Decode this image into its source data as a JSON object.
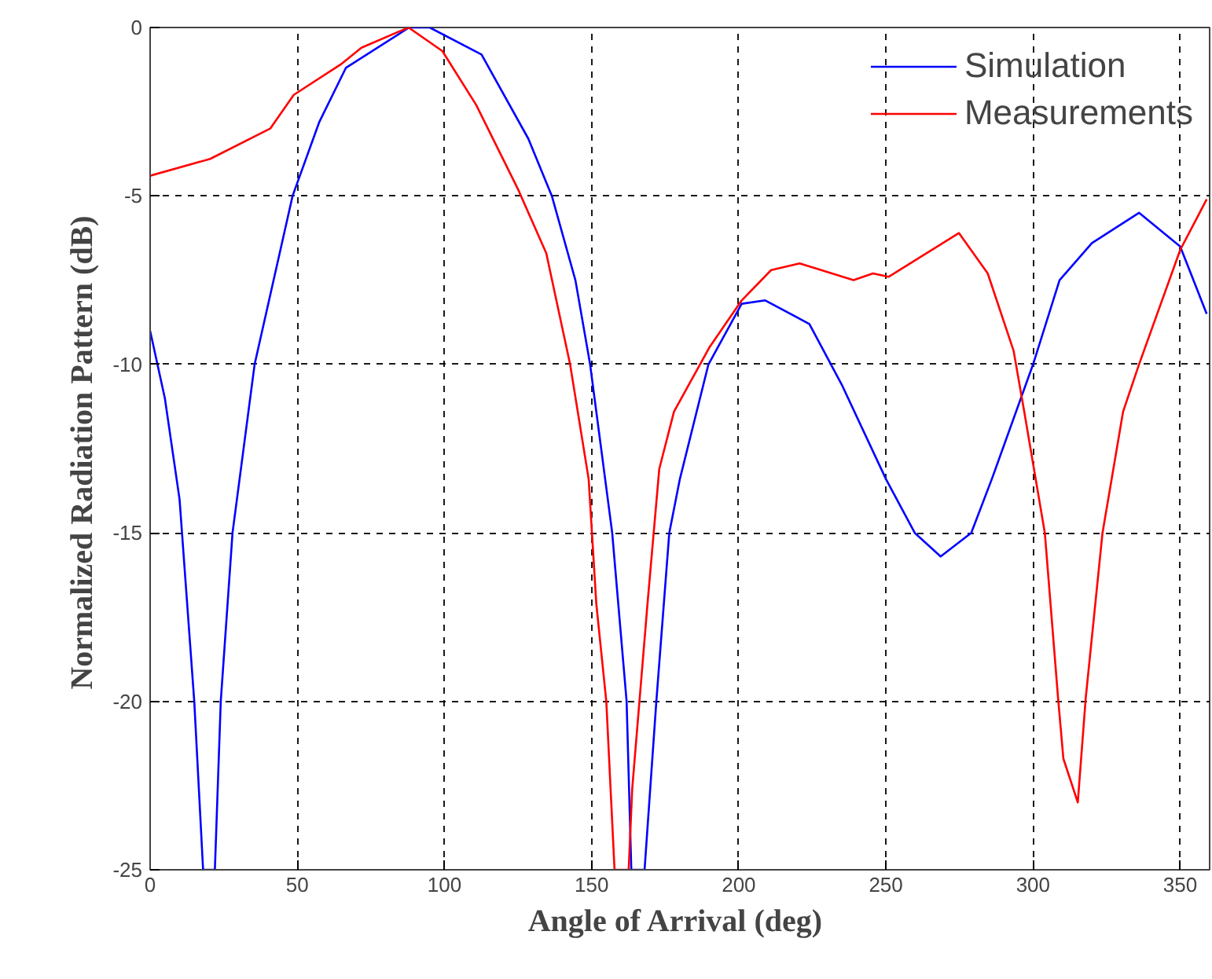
{
  "chart_data": {
    "type": "line",
    "xlabel": "Angle of Arrival  (deg)",
    "ylabel": "Normalized Radiation Pattern  (dB)",
    "xlim": [
      0,
      360
    ],
    "ylim": [
      -25,
      0
    ],
    "xticks": [
      0,
      50,
      100,
      150,
      200,
      250,
      300,
      350
    ],
    "yticks": [
      -25,
      -20,
      -15,
      -10,
      -5,
      0
    ],
    "grid": true,
    "legend": "top right",
    "line_style": "solid",
    "marker": "none",
    "series": [
      {
        "name": "Simulation",
        "color": "#0000ff",
        "x": [
          0,
          5,
          10,
          15,
          18,
          22,
          24,
          28,
          35.5,
          48.4,
          57.5,
          66.5,
          88,
          95,
          112.6,
          128.5,
          136.5,
          144.5,
          149.5,
          157,
          161.9,
          163.5,
          168,
          172,
          176.4,
          180,
          189.7,
          201,
          209,
          224,
          235,
          250,
          259.8,
          268.6,
          279,
          286,
          300,
          309,
          320,
          336,
          350,
          359
        ],
        "values": [
          -9,
          -11,
          -14,
          -20,
          -25,
          -25,
          -20,
          -15,
          -10,
          -5,
          -2.8,
          -1.2,
          0,
          0,
          -0.8,
          -3.3,
          -5,
          -7.5,
          -10,
          -15,
          -20,
          -25,
          -25,
          -20,
          -15,
          -13.4,
          -10,
          -8.2,
          -8.1,
          -8.8,
          -10.6,
          -13.4,
          -15,
          -15.7,
          -15,
          -13.4,
          -10,
          -7.5,
          -6.4,
          -5.5,
          -6.5,
          -8.5
        ]
      },
      {
        "name": "Measurements",
        "color": "#ff0000",
        "x": [
          0,
          20.4,
          40.8,
          48.8,
          64.7,
          71.8,
          87.8,
          99.3,
          110.8,
          125,
          134.6,
          142.7,
          149,
          151.6,
          155,
          157.8,
          162.6,
          163.8,
          169,
          173,
          178,
          190,
          201,
          211,
          220.7,
          239,
          245.6,
          250.9,
          274.8,
          284.6,
          293.4,
          297,
          304,
          308.5,
          310.3,
          315.2,
          317.9,
          323.6,
          330.6,
          336,
          350,
          359
        ],
        "values": [
          -4.4,
          -3.9,
          -3,
          -2,
          -1.1,
          -0.6,
          0,
          -0.7,
          -2.3,
          -4.8,
          -6.7,
          -10,
          -13.4,
          -17.1,
          -20,
          -25,
          -25,
          -22.6,
          -17.1,
          -13.1,
          -11.4,
          -9.5,
          -8.1,
          -7.2,
          -7,
          -7.5,
          -7.3,
          -7.4,
          -6.1,
          -7.3,
          -9.6,
          -11.4,
          -15,
          -19.9,
          -21.7,
          -23,
          -19.9,
          -15,
          -11.4,
          -10,
          -6.6,
          -5.1
        ]
      }
    ]
  }
}
